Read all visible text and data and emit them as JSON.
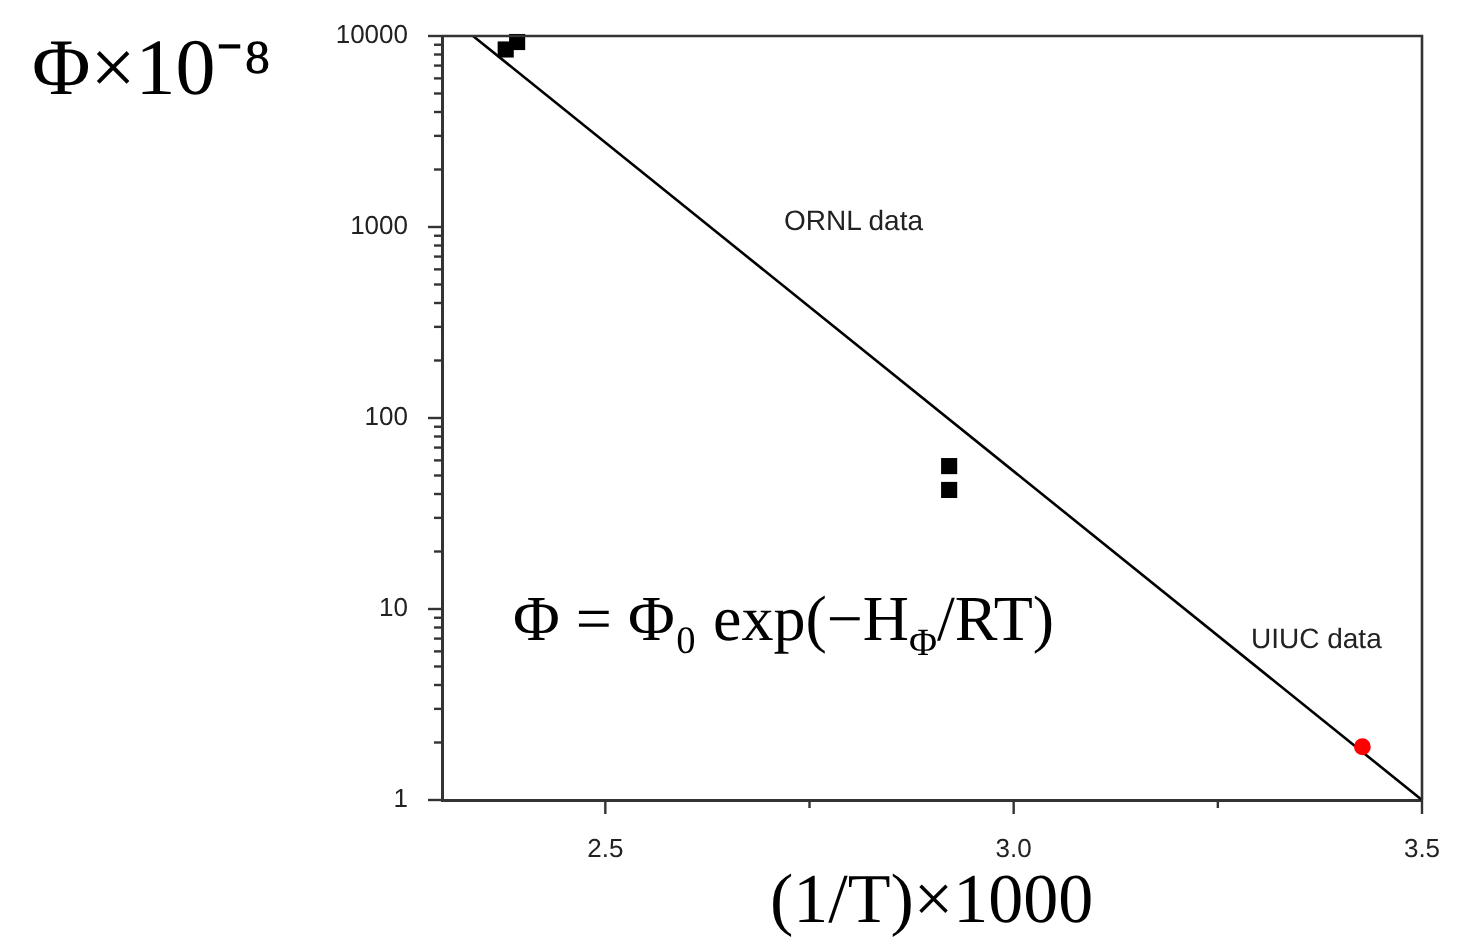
{
  "chart_data": {
    "type": "scatter",
    "xlabel": "(1/T)×1000",
    "ylabel": "Φ×10⁻⁸",
    "annotations": [
      "Φ = Φ₀ exp(−H$_{Φ}$/RT)",
      "ORNL data",
      "UIUC data"
    ],
    "series": [
      {
        "color": "#000000",
        "marker": "square",
        "x": [
          2.378,
          2.392,
          2.921,
          2.921
        ],
        "values": [
          8500,
          9300,
          56,
          42
        ]
      },
      {
        "color": "#ff0000",
        "marker": "circle",
        "x": [
          3.427
        ],
        "values": [
          1.9
        ]
      },
      {
        "type": "line",
        "color": "#000000",
        "x": [
          2.338,
          3.5
        ],
        "values": [
          10000,
          1
        ]
      }
    ],
    "xlim": [
      2.3,
      3.5
    ],
    "ylim": [
      1,
      10000
    ],
    "xticks": [
      2.5,
      {
        "value": 2.75,
        "label": null
      },
      {
        "value": 3,
        "label": "3.0"
      },
      {
        "value": 3.25,
        "label": null
      },
      3.5
    ],
    "yticks": [
      1,
      {
        "value": 2,
        "label": null
      },
      {
        "value": 3,
        "label": null
      },
      {
        "value": 4,
        "label": null
      },
      {
        "value": 5,
        "label": null
      },
      {
        "value": 6,
        "label": null
      },
      {
        "value": 7,
        "label": null
      },
      {
        "value": 8,
        "label": null
      },
      {
        "value": 9,
        "label": null
      },
      10,
      {
        "value": 20,
        "label": null
      },
      {
        "value": 30,
        "label": null
      },
      {
        "value": 40,
        "label": null
      },
      {
        "value": 50,
        "label": null
      },
      {
        "value": 60,
        "label": null
      },
      {
        "value": 70,
        "label": null
      },
      {
        "value": 80,
        "label": null
      },
      {
        "value": 90,
        "label": null
      },
      100,
      {
        "value": 200,
        "label": null
      },
      {
        "value": 300,
        "label": null
      },
      {
        "value": 400,
        "label": null
      },
      {
        "value": 500,
        "label": null
      },
      {
        "value": 600,
        "label": null
      },
      {
        "value": 700,
        "label": null
      },
      {
        "value": 800,
        "label": null
      },
      {
        "value": 900,
        "label": null
      },
      1000,
      {
        "value": 2000,
        "label": null
      },
      {
        "value": 3000,
        "label": null
      },
      {
        "value": 4000,
        "label": null
      },
      {
        "value": 5000,
        "label": null
      },
      {
        "value": 6000,
        "label": null
      },
      {
        "value": 7000,
        "label": null
      },
      {
        "value": 8000,
        "label": null
      },
      {
        "value": 9000,
        "label": null
      },
      10000
    ],
    "log": "y"
  }
}
